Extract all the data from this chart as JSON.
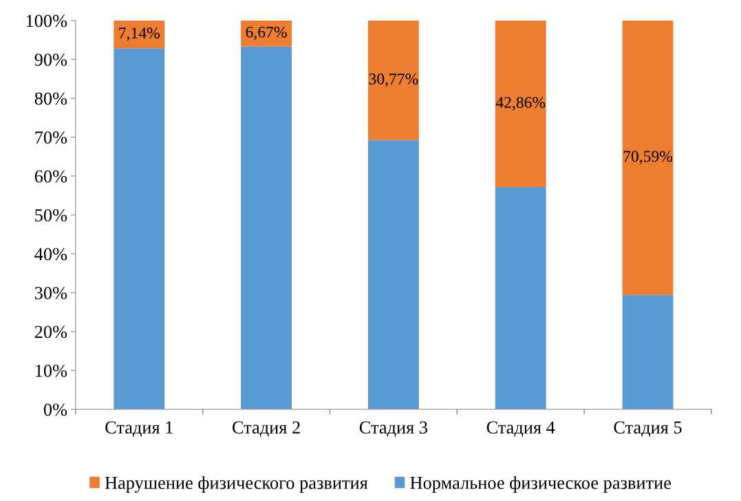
{
  "chart_data": {
    "type": "bar",
    "stacked": true,
    "categories": [
      "Стадия 1",
      "Стадия 2",
      "Стадия 3",
      "Стадия 4",
      "Стадия 5"
    ],
    "series": [
      {
        "name": "Нормальное физическое развитие",
        "color": "#5b9bd5",
        "values": [
          92.86,
          93.33,
          69.23,
          57.14,
          29.41
        ]
      },
      {
        "name": "Нарушение физического развития",
        "color": "#ed7d31",
        "values": [
          7.14,
          6.67,
          30.77,
          42.86,
          70.59
        ],
        "value_labels": [
          "7,14%",
          "6,67%",
          "30,77%",
          "42,86%",
          "70,59%"
        ]
      }
    ],
    "ylim": [
      0,
      100
    ],
    "yticks": [
      {
        "value": 0,
        "label": "0%"
      },
      {
        "value": 10,
        "label": "10%"
      },
      {
        "value": 20,
        "label": "20%"
      },
      {
        "value": 30,
        "label": "30%"
      },
      {
        "value": 40,
        "label": "40%"
      },
      {
        "value": 50,
        "label": "50%"
      },
      {
        "value": 60,
        "label": "60%"
      },
      {
        "value": 70,
        "label": "70%"
      },
      {
        "value": 80,
        "label": "80%"
      },
      {
        "value": 90,
        "label": "90%"
      },
      {
        "value": 100,
        "label": "100%"
      }
    ],
    "grid": false,
    "legend": "bottom"
  }
}
